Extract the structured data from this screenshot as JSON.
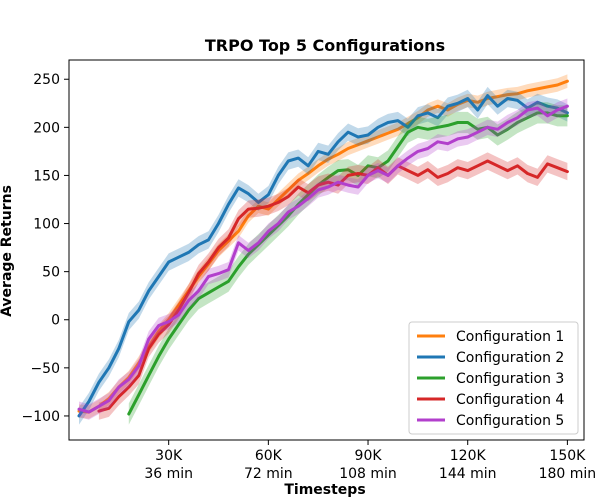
{
  "chart_data": {
    "type": "line",
    "title": "TRPO Top 5 Configurations",
    "xlabel": "Timesteps",
    "ylabel": "Average Returns",
    "xlim": [
      0,
      155000
    ],
    "ylim": [
      -125,
      270
    ],
    "x_ticks": [
      {
        "value": 30000,
        "label": "30K",
        "sublabel": "36 min"
      },
      {
        "value": 60000,
        "label": "60K",
        "sublabel": "72 min"
      },
      {
        "value": 90000,
        "label": "90K",
        "sublabel": "108 min"
      },
      {
        "value": 120000,
        "label": "120K",
        "sublabel": "144 min"
      },
      {
        "value": 150000,
        "label": "150K",
        "sublabel": "180 min"
      }
    ],
    "y_ticks": [
      -100,
      -50,
      0,
      50,
      100,
      150,
      200,
      250
    ],
    "y_tick_labels": [
      "−100",
      "−50",
      "0",
      "50",
      "100",
      "150",
      "200",
      "250"
    ],
    "grid": false,
    "legend_position": "bottom-right",
    "series": [
      {
        "name": "Configuration 1",
        "color": "#ff7f0e",
        "band": 7,
        "x": [
          3000,
          6000,
          9000,
          12000,
          15000,
          18000,
          21000,
          24000,
          27000,
          30000,
          33000,
          36000,
          39000,
          42000,
          45000,
          48000,
          51000,
          54000,
          57000,
          60000,
          63000,
          66000,
          69000,
          72000,
          75000,
          78000,
          81000,
          84000,
          87000,
          90000,
          93000,
          96000,
          99000,
          102000,
          105000,
          108000,
          111000,
          114000,
          117000,
          120000,
          123000,
          126000,
          129000,
          132000,
          135000,
          138000,
          141000,
          144000,
          147000,
          150000
        ],
        "y": [
          -95,
          -96,
          -90,
          -82,
          -70,
          -60,
          -45,
          -28,
          -12,
          0,
          15,
          30,
          45,
          58,
          72,
          82,
          92,
          108,
          118,
          115,
          125,
          135,
          145,
          152,
          160,
          167,
          172,
          178,
          182,
          186,
          190,
          194,
          198,
          204,
          210,
          218,
          222,
          218,
          224,
          228,
          226,
          230,
          232,
          234,
          235,
          238,
          240,
          242,
          244,
          248
        ]
      },
      {
        "name": "Configuration 2",
        "color": "#1f77b4",
        "band": 9,
        "x": [
          3000,
          6000,
          9000,
          12000,
          15000,
          18000,
          21000,
          24000,
          27000,
          30000,
          33000,
          36000,
          39000,
          42000,
          45000,
          48000,
          51000,
          54000,
          57000,
          60000,
          63000,
          66000,
          69000,
          72000,
          75000,
          78000,
          81000,
          84000,
          87000,
          90000,
          93000,
          96000,
          99000,
          102000,
          105000,
          108000,
          111000,
          114000,
          117000,
          120000,
          123000,
          126000,
          129000,
          132000,
          135000,
          138000,
          141000,
          144000,
          147000,
          150000
        ],
        "y": [
          -100,
          -85,
          -65,
          -50,
          -30,
          -2,
          10,
          30,
          45,
          60,
          65,
          70,
          78,
          83,
          100,
          120,
          137,
          131,
          122,
          130,
          150,
          165,
          168,
          160,
          175,
          172,
          185,
          195,
          190,
          192,
          200,
          205,
          207,
          200,
          212,
          215,
          210,
          222,
          225,
          230,
          218,
          233,
          222,
          230,
          228,
          220,
          226,
          222,
          220,
          215
        ]
      },
      {
        "name": "Configuration 3",
        "color": "#2ca02c",
        "band": 11,
        "x": [
          18000,
          21000,
          24000,
          27000,
          30000,
          33000,
          36000,
          39000,
          42000,
          45000,
          48000,
          51000,
          54000,
          57000,
          60000,
          63000,
          66000,
          69000,
          72000,
          75000,
          78000,
          81000,
          84000,
          87000,
          90000,
          93000,
          96000,
          99000,
          102000,
          105000,
          108000,
          111000,
          114000,
          117000,
          120000,
          123000,
          126000,
          129000,
          132000,
          135000,
          138000,
          141000,
          144000,
          147000,
          150000
        ],
        "y": [
          -98,
          -78,
          -58,
          -38,
          -20,
          -5,
          10,
          22,
          28,
          34,
          40,
          55,
          68,
          78,
          88,
          98,
          108,
          120,
          130,
          140,
          148,
          155,
          156,
          150,
          160,
          158,
          165,
          180,
          195,
          200,
          198,
          200,
          202,
          205,
          205,
          198,
          200,
          192,
          198,
          205,
          210,
          215,
          215,
          212,
          212
        ]
      },
      {
        "name": "Configuration 4",
        "color": "#d62728",
        "band": 9,
        "x": [
          9000,
          12000,
          15000,
          18000,
          21000,
          24000,
          27000,
          30000,
          33000,
          36000,
          39000,
          42000,
          45000,
          48000,
          51000,
          54000,
          57000,
          60000,
          63000,
          66000,
          69000,
          72000,
          75000,
          78000,
          81000,
          84000,
          87000,
          90000,
          93000,
          96000,
          99000,
          102000,
          105000,
          108000,
          111000,
          114000,
          117000,
          120000,
          123000,
          126000,
          129000,
          132000,
          135000,
          138000,
          141000,
          144000,
          147000,
          150000
        ],
        "y": [
          -95,
          -92,
          -80,
          -70,
          -58,
          -30,
          -15,
          -5,
          10,
          28,
          48,
          60,
          75,
          85,
          105,
          115,
          116,
          118,
          122,
          128,
          138,
          132,
          140,
          143,
          140,
          150,
          152,
          150,
          158,
          150,
          160,
          155,
          150,
          156,
          148,
          152,
          158,
          155,
          160,
          165,
          160,
          155,
          160,
          152,
          148,
          162,
          158,
          154
        ]
      },
      {
        "name": "Configuration 5",
        "color": "#b23fcc",
        "band": 8,
        "x": [
          3000,
          6000,
          9000,
          12000,
          15000,
          18000,
          21000,
          24000,
          27000,
          30000,
          33000,
          36000,
          39000,
          42000,
          45000,
          48000,
          51000,
          54000,
          57000,
          60000,
          63000,
          66000,
          69000,
          72000,
          75000,
          78000,
          81000,
          84000,
          87000,
          90000,
          93000,
          96000,
          99000,
          102000,
          105000,
          108000,
          111000,
          114000,
          117000,
          120000,
          123000,
          126000,
          129000,
          132000,
          135000,
          138000,
          141000,
          144000,
          147000,
          150000
        ],
        "y": [
          -93,
          -96,
          -90,
          -84,
          -70,
          -62,
          -48,
          -20,
          -6,
          -2,
          5,
          20,
          30,
          45,
          48,
          52,
          80,
          72,
          80,
          92,
          100,
          112,
          118,
          126,
          135,
          138,
          143,
          140,
          138,
          150,
          155,
          150,
          160,
          168,
          175,
          178,
          185,
          183,
          188,
          190,
          195,
          200,
          198,
          205,
          210,
          218,
          220,
          212,
          218,
          222
        ]
      }
    ]
  }
}
